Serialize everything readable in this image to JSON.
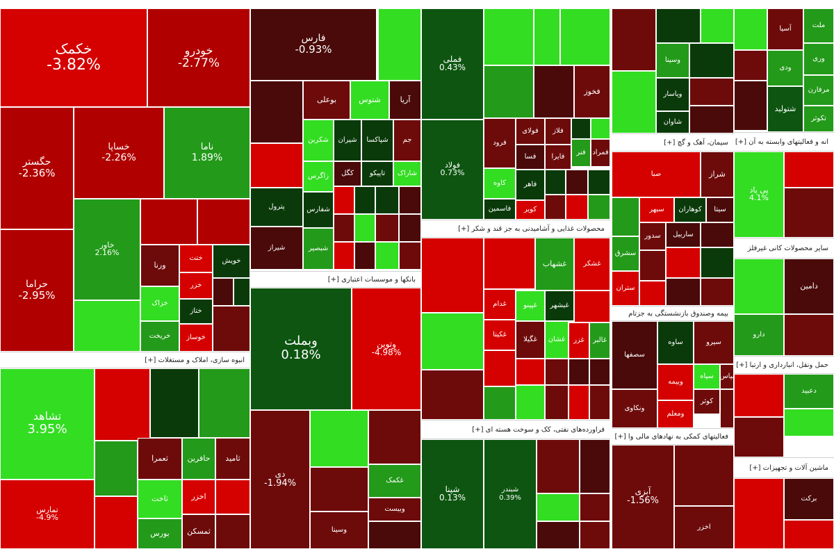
{
  "chart_data": {
    "type": "treemap",
    "unit": "%",
    "colors": {
      "deep_red": "#d50000",
      "red": "#b10000",
      "dark_red": "#6d0b0b",
      "darkest_red": "#4a0a0a",
      "bright_green": "#33dd22",
      "green": "#239a1a",
      "dark_green": "#0d5510",
      "darkest_green": "#0a3a0a"
    },
    "sectors": [
      {
        "name": "انبوه سازی، املاک و مستغلات [+]"
      },
      {
        "name": "بانکها و موسسات اعتباری [+]"
      },
      {
        "name": "محصولات غذایی و آشامیدنی به جز قند و شکر [+]"
      },
      {
        "name": "فراورده‌های نفتی، کک و سوخت هسته ای [+]"
      },
      {
        "name": "سیمان، آهک و گچ [+]"
      },
      {
        "name": "انه و فعالیتهای وابسته به آن [+]"
      },
      {
        "name": "سایر محصولات کانی غیرفلز"
      },
      {
        "name": "بیمه وصندوق بازنشستگی به جزتام"
      },
      {
        "name": "حمل ونقل، انبارداری و ارتبا [+]"
      },
      {
        "name": "فعالیتهای کمکی به نهادهای مالی وا [+]"
      },
      {
        "name": "ماشین آلات و تجهیزات [+]"
      }
    ],
    "tiles": [
      {
        "symbol": "خکمک",
        "change": "-3.82%"
      },
      {
        "symbol": "خودرو",
        "change": "-2.77%"
      },
      {
        "symbol": "حگستر",
        "change": "-2.36%"
      },
      {
        "symbol": "خساپا",
        "change": "-2.26%"
      },
      {
        "symbol": "ناما",
        "change": "1.89%"
      },
      {
        "symbol": "حراما",
        "change": "-2.95%"
      },
      {
        "symbol": "خاور",
        "change": "2.16%"
      },
      {
        "symbol": "ورنا"
      },
      {
        "symbol": "ختت"
      },
      {
        "symbol": "خویش"
      },
      {
        "symbol": "خزر"
      },
      {
        "symbol": "خزاک"
      },
      {
        "symbol": "ختاز"
      },
      {
        "symbol": "خریخت"
      },
      {
        "symbol": "خوساز"
      },
      {
        "symbol": "فارس",
        "change": "-0.93%"
      },
      {
        "symbol": "وبملت",
        "change": "0.18%"
      },
      {
        "symbol": "وتوین",
        "change": "-4.98%"
      },
      {
        "symbol": "فملی",
        "change": "0.43%"
      },
      {
        "symbol": "فولاد",
        "change": "0.73%"
      },
      {
        "symbol": "شپنا",
        "change": "0.13%"
      },
      {
        "symbol": "شبندر",
        "change": "0.39%"
      },
      {
        "symbol": "دی",
        "change": "-1.94%"
      },
      {
        "symbol": "تشاهد",
        "change": "3.95%"
      },
      {
        "symbol": "تمارس",
        "change": "-4.9%"
      },
      {
        "symbol": "آبزی",
        "change": "-1.56%"
      },
      {
        "symbol": "پی پاد",
        "change": "4.1%"
      },
      {
        "symbol": "بوعلی"
      },
      {
        "symbol": "شتوس"
      },
      {
        "symbol": "آریا"
      },
      {
        "symbol": "شکربن"
      },
      {
        "symbol": "شیران"
      },
      {
        "symbol": "شپاکسا"
      },
      {
        "symbol": "جم"
      },
      {
        "symbol": "زاگرس"
      },
      {
        "symbol": "کگل"
      },
      {
        "symbol": "تاپیکو"
      },
      {
        "symbol": "شاراک"
      },
      {
        "symbol": "پترول"
      },
      {
        "symbol": "شفارس"
      },
      {
        "symbol": "شیراز"
      },
      {
        "symbol": "شبصیر"
      },
      {
        "symbol": "فخوز"
      },
      {
        "symbol": "فرود"
      },
      {
        "symbol": "فولای"
      },
      {
        "symbol": "فلاز"
      },
      {
        "symbol": "فسا"
      },
      {
        "symbol": "فایرا"
      },
      {
        "symbol": "فنر"
      },
      {
        "symbol": "کاوه"
      },
      {
        "symbol": "فاهر"
      },
      {
        "symbol": "کویر"
      },
      {
        "symbol": "فاسمین"
      },
      {
        "symbol": "فمراد"
      },
      {
        "symbol": "غشهاب"
      },
      {
        "symbol": "غشکر"
      },
      {
        "symbol": "غپینو"
      },
      {
        "symbol": "غبشهر"
      },
      {
        "symbol": "غدام"
      },
      {
        "symbol": "غکیتا"
      },
      {
        "symbol": "غگیلا"
      },
      {
        "symbol": "غشان"
      },
      {
        "symbol": "غزر"
      },
      {
        "symbol": "غالبر"
      },
      {
        "symbol": "غکمک"
      },
      {
        "symbol": "وبیست"
      },
      {
        "symbol": "وسینا"
      },
      {
        "symbol": "ویاسار"
      },
      {
        "symbol": "شاوان"
      },
      {
        "symbol": "شراز"
      },
      {
        "symbol": "صبا"
      },
      {
        "symbol": "سبهر"
      },
      {
        "symbol": "کوهاران"
      },
      {
        "symbol": "سیتا"
      },
      {
        "symbol": "ساربیل"
      },
      {
        "symbol": "سدور"
      },
      {
        "symbol": "سشرق"
      },
      {
        "symbol": "ستران"
      },
      {
        "symbol": "سصفها"
      },
      {
        "symbol": "ساوه"
      },
      {
        "symbol": "سیرو"
      },
      {
        "symbol": "سپاه"
      },
      {
        "symbol": "وبیمه"
      },
      {
        "symbol": "بپاس"
      },
      {
        "symbol": "کوثر"
      },
      {
        "symbol": "ومعلم"
      },
      {
        "symbol": "ونکاوی"
      },
      {
        "symbol": "آسیا"
      },
      {
        "symbol": "ملت"
      },
      {
        "symbol": "وری"
      },
      {
        "symbol": "ودی"
      },
      {
        "symbol": "مرفارن"
      },
      {
        "symbol": "شتولید"
      },
      {
        "symbol": "تکوثر"
      },
      {
        "symbol": "دامین"
      },
      {
        "symbol": "دارو"
      },
      {
        "symbol": "دعبید"
      },
      {
        "symbol": "برکت"
      },
      {
        "symbol": "کگاز"
      },
      {
        "symbol": "کسرا"
      },
      {
        "symbol": "حافرین"
      },
      {
        "symbol": "اخزر"
      },
      {
        "symbol": "بورس"
      },
      {
        "symbol": "ثاخت"
      },
      {
        "symbol": "ثامید"
      },
      {
        "symbol": "ثشرق"
      },
      {
        "symbol": "ثعمرا"
      },
      {
        "symbol": "ثمسکن"
      },
      {
        "symbol": "وآذر"
      },
      {
        "symbol": "وسا"
      }
    ]
  }
}
